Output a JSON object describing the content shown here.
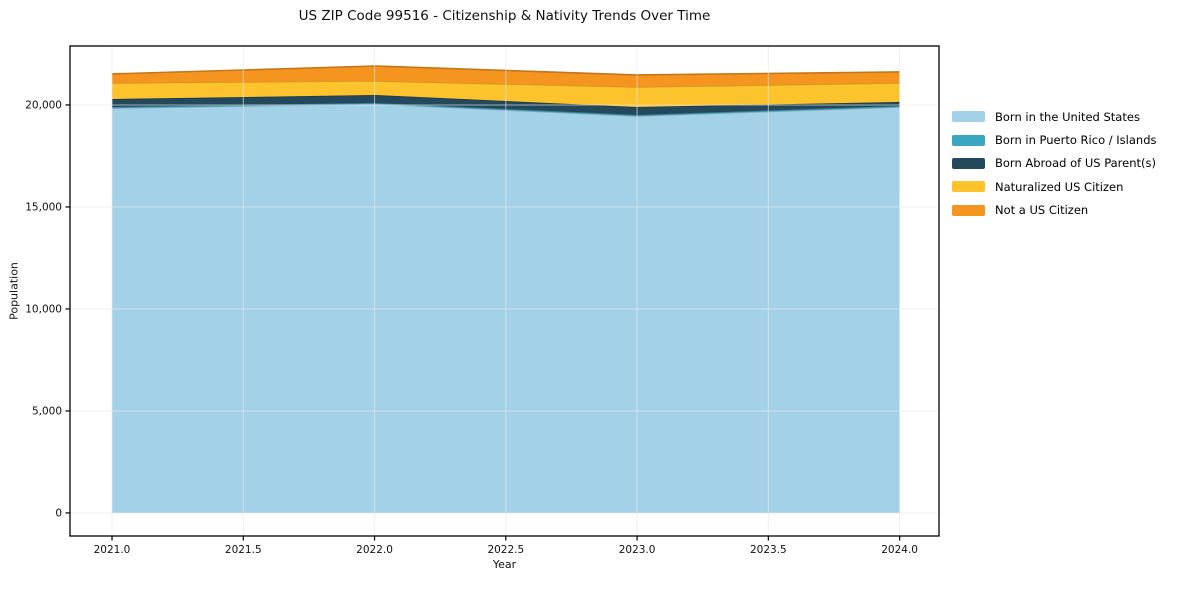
{
  "chart_data": {
    "type": "area",
    "stacked": true,
    "title": "US ZIP Code 99516 - Citizenship & Nativity Trends Over Time",
    "xlabel": "Year",
    "ylabel": "Population",
    "x": [
      2021,
      2022,
      2023,
      2024
    ],
    "series": [
      {
        "name": "Born in the United States",
        "color": "#A3D2E8",
        "values": [
          19850,
          20050,
          19460,
          19900
        ]
      },
      {
        "name": "Born in Puerto Rico / Islands",
        "color": "#3BA6C1",
        "values": [
          50,
          50,
          50,
          50
        ]
      },
      {
        "name": "Born Abroad of US Parent(s)",
        "color": "#25495C",
        "values": [
          390,
          390,
          390,
          200
        ]
      },
      {
        "name": "Naturalized US Citizen",
        "color": "#FDC32D",
        "values": [
          790,
          690,
          980,
          930
        ]
      },
      {
        "name": "Not a US Citizen",
        "color": "#F5941E",
        "values": [
          440,
          730,
          590,
          540
        ]
      }
    ],
    "totals": [
      21520,
      21910,
      21470,
      21620
    ],
    "xlim": [
      2020.84,
      2024.15
    ],
    "ylim": [
      -1130,
      22890
    ],
    "x_ticks": [
      2021.0,
      2021.5,
      2022.0,
      2022.5,
      2023.0,
      2023.5,
      2024.0
    ],
    "x_tick_labels": [
      "2021.0",
      "2021.5",
      "2022.0",
      "2022.5",
      "2023.0",
      "2023.5",
      "2024.0"
    ],
    "y_ticks": [
      0,
      5000,
      10000,
      15000,
      20000
    ],
    "y_tick_labels": [
      "0",
      "5,000",
      "10,000",
      "15,000",
      "20,000"
    ],
    "grid": true,
    "grid_color": "#e7e7e7",
    "axis_color": "#000000",
    "tick_label_color": "#111111",
    "legend_position": "right-outside",
    "background": "#ffffff"
  }
}
